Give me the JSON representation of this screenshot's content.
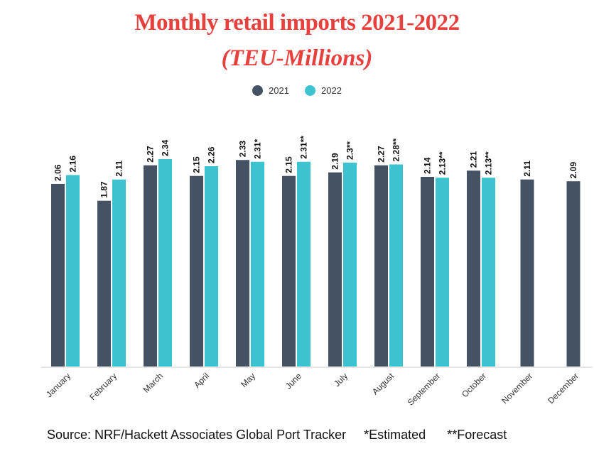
{
  "chart_data": {
    "type": "bar",
    "title": "Monthly retail imports 2021-2022",
    "subtitle": "(TEU-Millions)",
    "categories": [
      "January",
      "February",
      "March",
      "April",
      "May",
      "June",
      "July",
      "August",
      "September",
      "October",
      "November",
      "December"
    ],
    "series": [
      {
        "name": "2021",
        "color": "#455263",
        "values": [
          2.06,
          1.87,
          2.27,
          2.15,
          2.33,
          2.15,
          2.19,
          2.27,
          2.14,
          2.21,
          2.11,
          2.09
        ],
        "labels": [
          "2.06",
          "1.87",
          "2.27",
          "2.15",
          "2.33",
          "2.15",
          "2.19",
          "2.27",
          "2.14",
          "2.21",
          "2.11",
          "2.09"
        ]
      },
      {
        "name": "2022",
        "color": "#3cc3cf",
        "values": [
          2.16,
          2.11,
          2.34,
          2.26,
          2.31,
          2.31,
          2.3,
          2.28,
          2.13,
          2.13,
          null,
          null
        ],
        "labels": [
          "2.16",
          "2.11",
          "2.34",
          "2.26",
          "2.31*",
          "2.31**",
          "2.3**",
          "2.28**",
          "2.13**",
          "2.13**",
          null,
          null
        ]
      }
    ],
    "ylim": [
      0,
      2.34
    ],
    "grid": false,
    "legend_position": "top-center"
  },
  "source_note": "Source: NRF/Hackett Associates Global Port Tracker     *Estimated      **Forecast"
}
